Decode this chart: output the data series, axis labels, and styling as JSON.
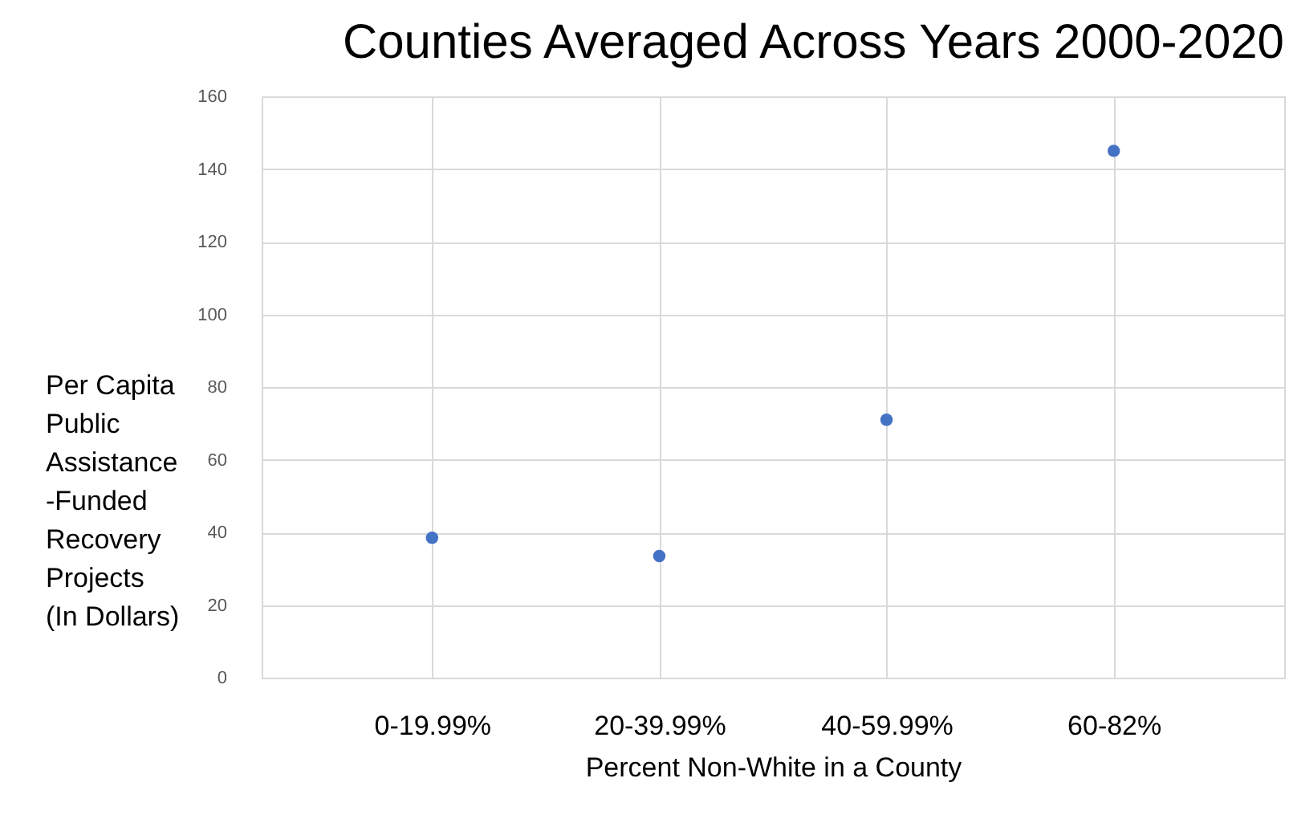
{
  "chart_data": {
    "type": "scatter",
    "title": "Counties Averaged Across Years 2000-2020",
    "xlabel": "Percent Non-White in a County",
    "ylabel": "Per Capita\nPublic\nAssistance\n-Funded\nRecovery\nProjects\n(In Dollars)",
    "categories": [
      "0-19.99%",
      "20-39.99%",
      "40-59.99%",
      "60-82%"
    ],
    "series": [
      {
        "color": "#4472c4",
        "values": [
          38.5,
          33.5,
          71,
          145
        ]
      }
    ],
    "ylim": [
      0,
      160
    ],
    "yticks": [
      0,
      20,
      40,
      60,
      80,
      100,
      120,
      140,
      160
    ],
    "grid": true,
    "marker": "circle"
  }
}
